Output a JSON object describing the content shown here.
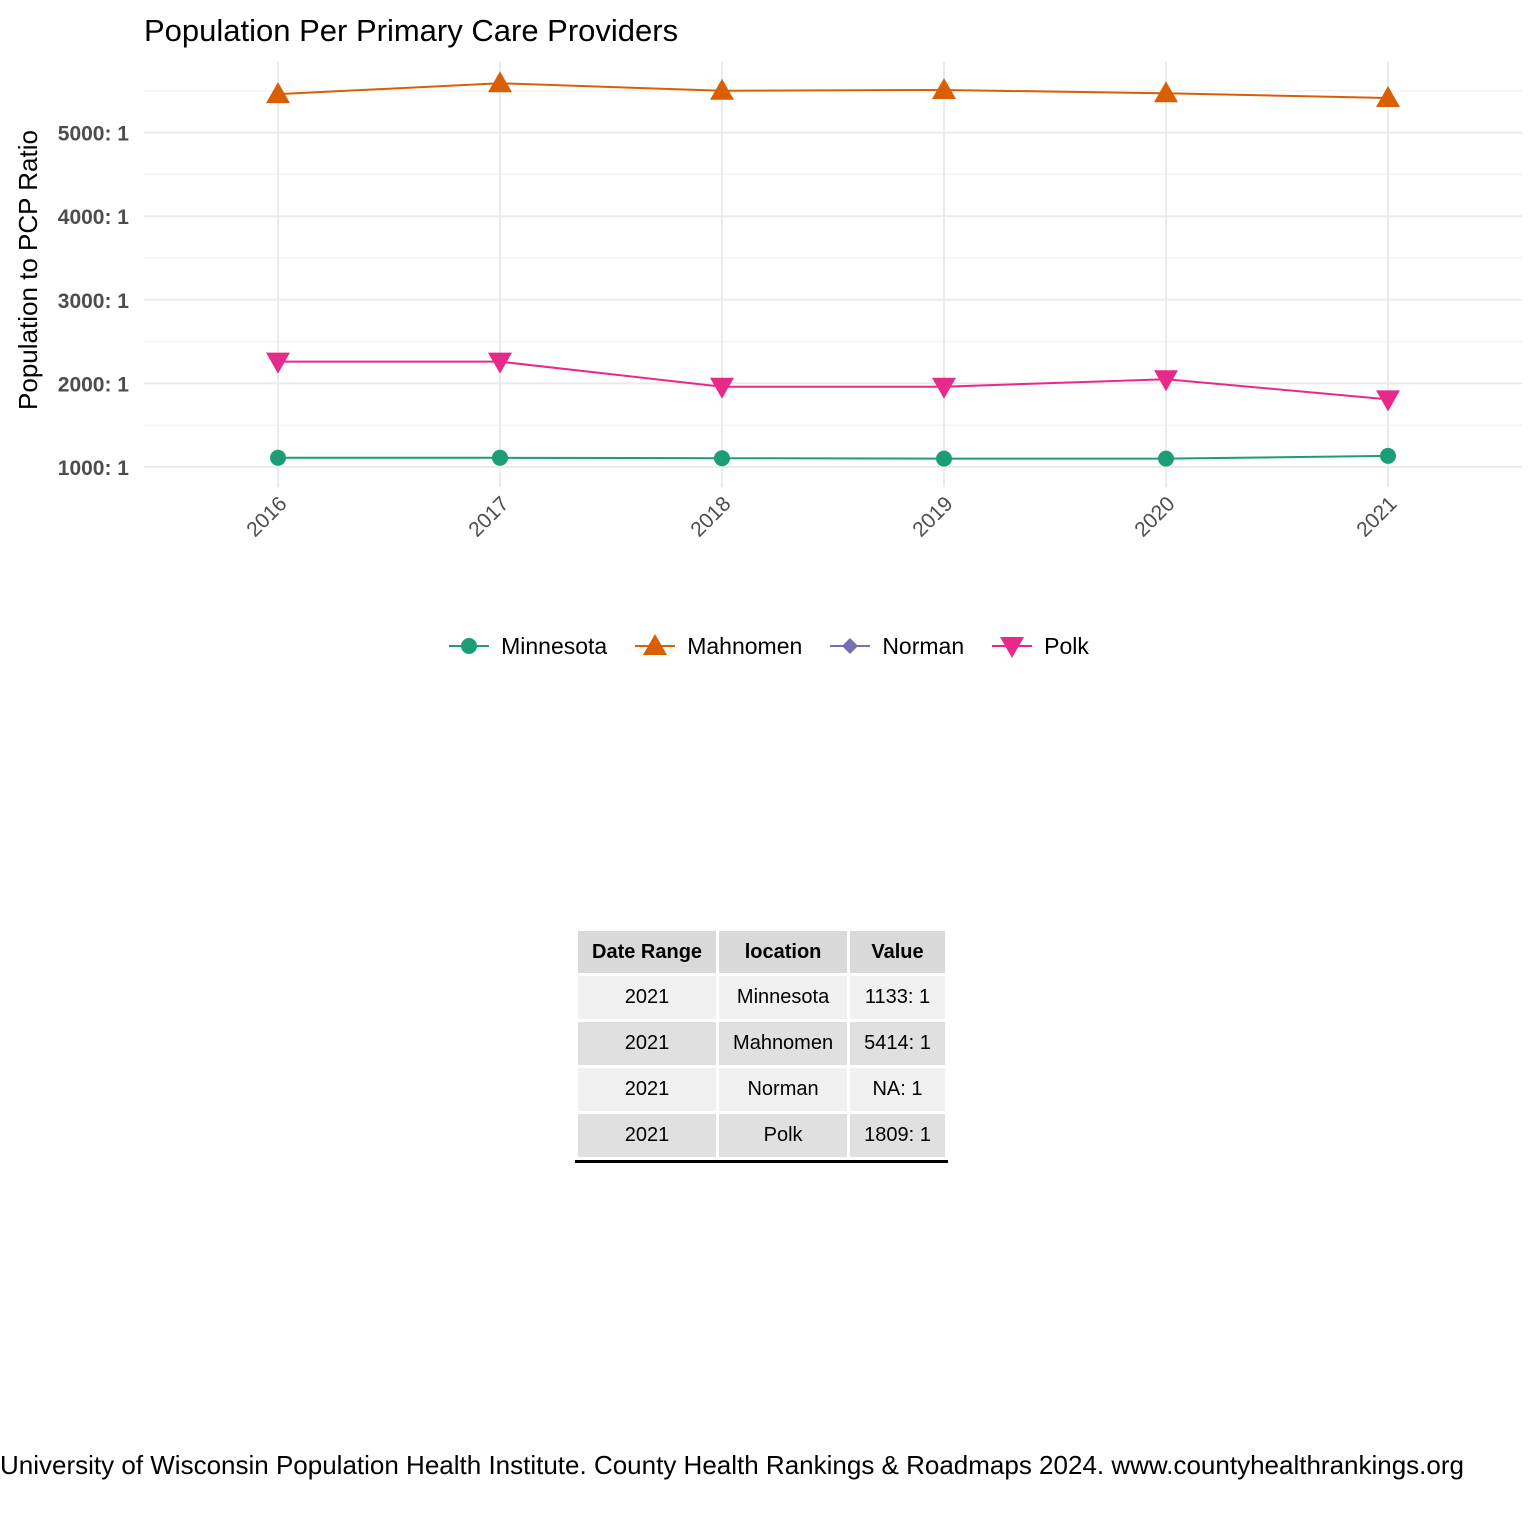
{
  "chart_data": {
    "type": "line",
    "title": "Population Per Primary Care Providers",
    "xlabel": "",
    "ylabel": "Population to PCP Ratio",
    "categories": [
      "2016",
      "2017",
      "2018",
      "2019",
      "2020",
      "2021"
    ],
    "y_ticks": [
      {
        "value": 1000,
        "label": "1000: 1"
      },
      {
        "value": 2000,
        "label": "2000: 1"
      },
      {
        "value": 3000,
        "label": "3000: 1"
      },
      {
        "value": 4000,
        "label": "4000: 1"
      },
      {
        "value": 5000,
        "label": "5000: 1"
      }
    ],
    "ylim": [
      1000,
      5700
    ],
    "grid": true,
    "legend_position": "bottom",
    "series": [
      {
        "name": "Minnesota",
        "color": "#1b9e77",
        "marker": "circle",
        "values": [
          1110,
          1110,
          1105,
          1100,
          1100,
          1133
        ]
      },
      {
        "name": "Mahnomen",
        "color": "#d95f02",
        "marker": "triangle-up",
        "values": [
          5460,
          5590,
          5500,
          5510,
          5470,
          5414
        ]
      },
      {
        "name": "Norman",
        "color": "#7570b3",
        "marker": "diamond",
        "values": [
          null,
          null,
          null,
          null,
          null,
          null
        ]
      },
      {
        "name": "Polk",
        "color": "#e7298a",
        "marker": "triangle-down",
        "values": [
          2260,
          2260,
          1960,
          1960,
          2050,
          1809
        ]
      }
    ]
  },
  "table": {
    "headers": [
      "Date Range",
      "location",
      "Value"
    ],
    "rows": [
      [
        "2021",
        "Minnesota",
        "1133: 1"
      ],
      [
        "2021",
        "Mahnomen",
        "5414: 1"
      ],
      [
        "2021",
        "Norman",
        "NA: 1"
      ],
      [
        "2021",
        "Polk",
        "1809: 1"
      ]
    ]
  },
  "caption": "University of Wisconsin Population Health Institute. County Health Rankings & Roadmaps 2024. www.countyhealthrankings.org"
}
